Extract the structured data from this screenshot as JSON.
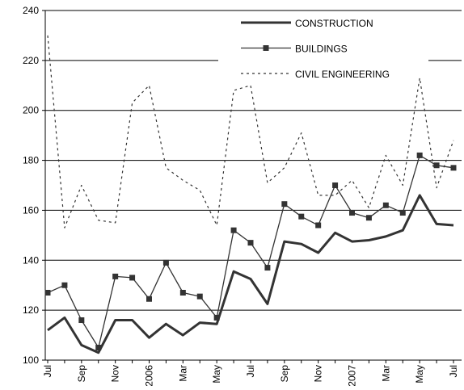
{
  "chart_data": {
    "type": "line",
    "categories": [
      "Jul",
      null,
      "Sep",
      null,
      "Nov",
      null,
      "2006",
      null,
      "Mar",
      null,
      "May",
      null,
      "Jul",
      null,
      "Sep",
      null,
      "Nov",
      null,
      "2007",
      null,
      "Mar",
      null,
      "May",
      null,
      "Jul"
    ],
    "series": [
      {
        "name": "CONSTRUCTION",
        "color": "#333333",
        "style": "solid",
        "width": 3,
        "marker": "none",
        "values": [
          112,
          117,
          106,
          103,
          116,
          116,
          109,
          114.5,
          110,
          115,
          114.5,
          135.5,
          132.5,
          122.5,
          147.5,
          146.5,
          143,
          151,
          147.5,
          148,
          149.5,
          152,
          166,
          154.5,
          154
        ]
      },
      {
        "name": "BUILDINGS",
        "color": "#333333",
        "style": "solid",
        "width": 1.3,
        "marker": "square",
        "values": [
          127,
          130,
          116,
          105,
          133.5,
          133,
          124.5,
          139,
          127,
          125.5,
          117,
          152,
          147,
          137,
          162.5,
          157.5,
          154,
          170,
          159,
          157,
          162,
          159,
          182,
          178,
          177
        ]
      },
      {
        "name": "CIVIL ENGINEERING",
        "color": "#333333",
        "style": "dashed",
        "width": 1.2,
        "marker": "none",
        "values": [
          230,
          153,
          170,
          156,
          155,
          203,
          210,
          177,
          172,
          168,
          154,
          208,
          210,
          171,
          177,
          191,
          166,
          166,
          172,
          161,
          182,
          170,
          213,
          169,
          188
        ]
      }
    ],
    "ylim": [
      100,
      240
    ],
    "yticks": [
      100,
      120,
      140,
      160,
      180,
      200,
      220,
      240
    ],
    "grid": true,
    "legend": "upper right"
  }
}
